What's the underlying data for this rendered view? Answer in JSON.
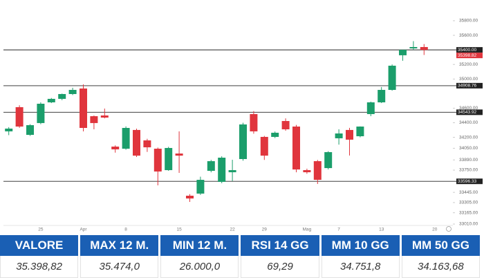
{
  "chart_data": {
    "type": "candlestick",
    "categories": [
      null,
      null,
      null,
      "25",
      null,
      null,
      null,
      "Apr",
      null,
      null,
      null,
      "8",
      null,
      null,
      null,
      null,
      "15",
      null,
      null,
      null,
      null,
      "22",
      null,
      null,
      "29",
      null,
      null,
      null,
      "Mag",
      null,
      null,
      "7",
      null,
      null,
      null,
      "13",
      null,
      null,
      null,
      null,
      "20"
    ],
    "open": [
      34282,
      34614,
      34234,
      34396,
      34680,
      34728,
      34794,
      34870,
      34490,
      34500,
      34073,
      34044,
      34301,
      34158,
      34044,
      33750,
      33978,
      33399,
      33428,
      33740,
      33589,
      33721,
      33902,
      34519,
      34206,
      34206,
      34424,
      34348,
      33750,
      33873,
      33778,
      34187,
      34301,
      34215,
      34519,
      34680,
      34851,
      35326,
      35420,
      35439,
      null
    ],
    "high": [
      34340,
      34640,
      34380,
      34680,
      34740,
      34800,
      34880,
      34927,
      34500,
      34595,
      34090,
      34350,
      34320,
      34180,
      34060,
      34070,
      34282,
      33420,
      33660,
      33890,
      33940,
      33892,
      34400,
      34560,
      34220,
      34280,
      34460,
      34370,
      33770,
      33890,
      34010,
      34310,
      34330,
      34350,
      34690,
      34890,
      35200,
      35400,
      35520,
      35480,
      null
    ],
    "low": [
      34230,
      34330,
      34220,
      34380,
      34670,
      34710,
      34780,
      34282,
      34310,
      34460,
      33990,
      34030,
      33930,
      34000,
      33541,
      33740,
      33712,
      33314,
      33410,
      33720,
      33570,
      33600,
      33880,
      34250,
      33890,
      34190,
      34290,
      33720,
      33700,
      33560,
      33760,
      34100,
      33950,
      34200,
      34490,
      34670,
      34840,
      35250,
      35400,
      35330,
      null
    ],
    "close": [
      34320,
      34348,
      34367,
      34661,
      34728,
      34794,
      34851,
      34329,
      34396,
      34471,
      34035,
      34329,
      33949,
      34063,
      33731,
      34054,
      33949,
      33361,
      33617,
      33873,
      33921,
      33750,
      34377,
      34282,
      33949,
      34263,
      34310,
      33759,
      33721,
      33617,
      33997,
      34253,
      34168,
      34348,
      34680,
      34851,
      35183,
      35401,
      35439,
      35398.82,
      null
    ],
    "up_color": "#1b9e6b",
    "down_color": "#e0353d",
    "ylim": [
      32991,
      36037
    ],
    "yticks": [
      {
        "value": 35800,
        "label": "35800.00"
      },
      {
        "value": 35600,
        "label": "35600.00"
      },
      {
        "value": 35200,
        "label": "35200.00"
      },
      {
        "value": 35000,
        "label": "35000.00"
      },
      {
        "value": 34600,
        "label": "34600.00"
      },
      {
        "value": 34400,
        "label": "34400.00"
      },
      {
        "value": 34200,
        "label": "34200.00"
      },
      {
        "value": 34050,
        "label": "34050.00"
      },
      {
        "value": 33890,
        "label": "33890.00"
      },
      {
        "value": 33750,
        "label": "33750.00"
      },
      {
        "value": 33445,
        "label": "33445.00"
      },
      {
        "value": 33305,
        "label": "33305.00"
      },
      {
        "value": 33165,
        "label": "33165.00"
      },
      {
        "value": 33010,
        "label": "33010.00"
      }
    ],
    "levels": [
      {
        "value": 35400,
        "label": "35400.00"
      },
      {
        "value": 34908.76,
        "label": "34908.76"
      },
      {
        "value": 34543.92,
        "label": "34543.92"
      },
      {
        "value": 33596.33,
        "label": "33596.33"
      }
    ],
    "level_color": "#222",
    "last_price": {
      "value": 35398.82,
      "label": "35398.82"
    }
  },
  "table": {
    "headers": [
      "VALORE",
      "MAX 12 M.",
      "MIN 12 M.",
      "RSI 14 GG",
      "MM 10 GG",
      "MM 50 GG"
    ],
    "rows": [
      [
        "35.398,82",
        "35.474,0",
        "26.000,0",
        "69,29",
        "34.751,8",
        "34.163,68"
      ]
    ]
  }
}
